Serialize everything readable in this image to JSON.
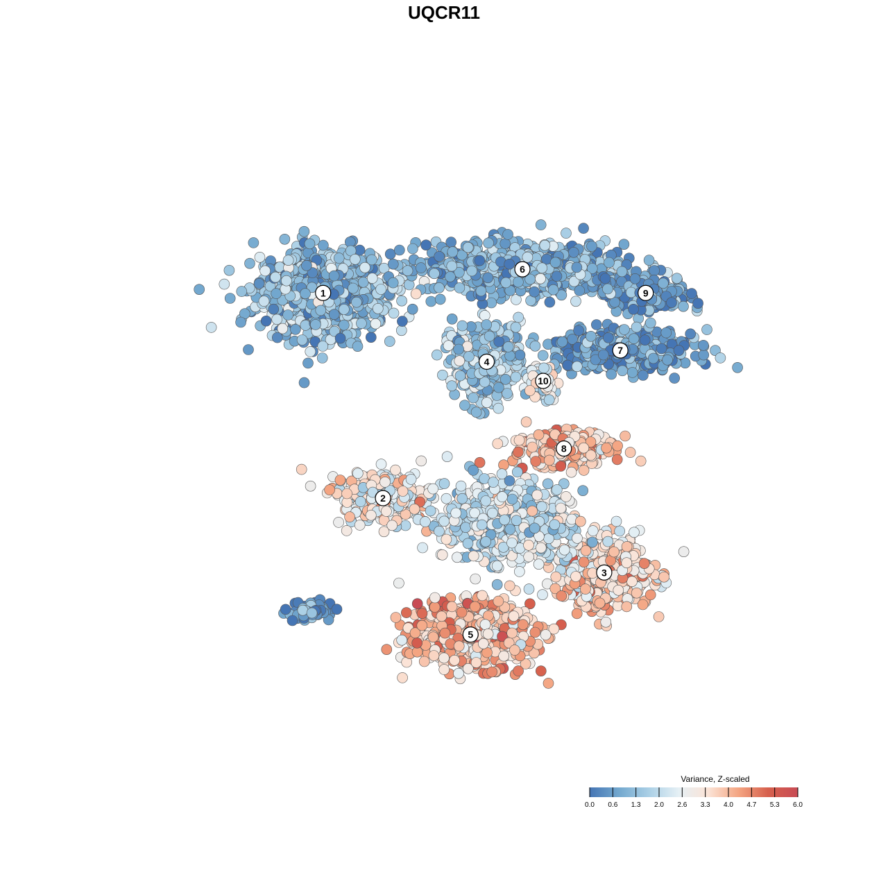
{
  "chart_data": {
    "type": "scatter",
    "title": "UQCR11",
    "xlabel": "",
    "ylabel": "",
    "grid": false,
    "legend": {
      "title": "Variance, Z-scaled",
      "placement": "bottom-right",
      "ticks": [
        "0.0",
        "0.6",
        "1.3",
        "2.0",
        "2.6",
        "3.3",
        "4.0",
        "4.7",
        "5.3",
        "6.0"
      ],
      "range": [
        0,
        6
      ],
      "colors": [
        "#4575b4",
        "#74a9cf",
        "#abd0e6",
        "#e6f0f5",
        "#fbe3d6",
        "#f4a582",
        "#d6604d",
        "#c84b55"
      ]
    },
    "clusters": [
      {
        "label": "1",
        "x": -12.0,
        "y": 13.4,
        "sx": 5.2,
        "sy": 3.6,
        "value": 1.2,
        "n": 850
      },
      {
        "label": "6",
        "x": 5.3,
        "y": 15.5,
        "sx": 8.0,
        "sy": 2.0,
        "value": 1.0,
        "n": 700
      },
      {
        "label": "9",
        "x": 16.0,
        "y": 13.4,
        "sx": 3.4,
        "sy": 1.4,
        "value": 0.6,
        "n": 220
      },
      {
        "label": "7",
        "x": 13.8,
        "y": 8.3,
        "sx": 5.8,
        "sy": 1.6,
        "value": 0.6,
        "n": 380
      },
      {
        "label": "4",
        "x": 2.2,
        "y": 7.3,
        "sx": 2.6,
        "sy": 3.0,
        "value": 1.6,
        "n": 450
      },
      {
        "label": "10",
        "x": 7.1,
        "y": 5.6,
        "sx": 1.0,
        "sy": 1.4,
        "value": 2.4,
        "n": 70
      },
      {
        "label": "8",
        "x": 8.9,
        "y": -0.4,
        "sx": 4.0,
        "sy": 1.5,
        "value": 3.9,
        "n": 260
      },
      {
        "label": "2",
        "x": -6.8,
        "y": -4.8,
        "sx": 3.8,
        "sy": 2.2,
        "value": 3.0,
        "n": 260
      },
      {
        "label": "3",
        "x": 12.4,
        "y": -11.4,
        "sx": 3.8,
        "sy": 2.8,
        "value": 3.5,
        "n": 480
      },
      {
        "label": "5",
        "x": 0.8,
        "y": -16.9,
        "sx": 4.8,
        "sy": 2.6,
        "value": 4.0,
        "n": 600
      },
      {
        "label": "",
        "x": 4.0,
        "y": -7.0,
        "sx": 4.8,
        "sy": 3.0,
        "value": 2.2,
        "n": 800
      },
      {
        "label": "",
        "x": -13.0,
        "y": -14.8,
        "sx": 2.0,
        "sy": 0.8,
        "value": 0.5,
        "n": 60
      }
    ],
    "xlim": [
      -28,
      28
    ],
    "ylim": [
      -28,
      28
    ]
  }
}
